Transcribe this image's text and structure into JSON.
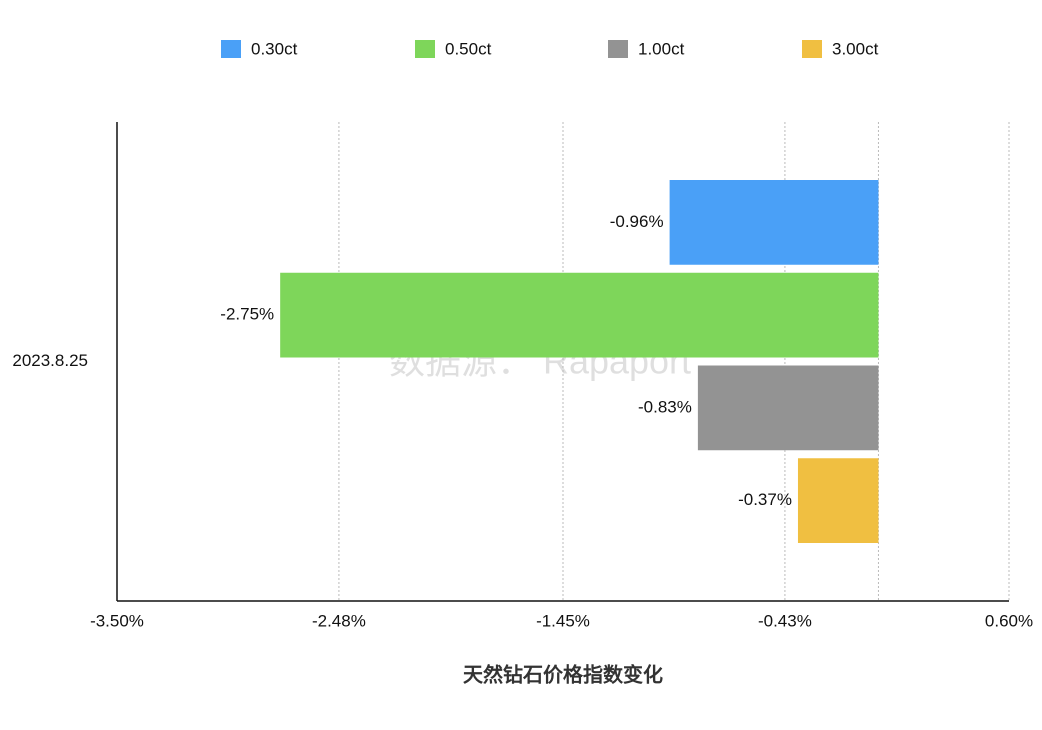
{
  "chart_data": {
    "type": "bar",
    "orientation": "horizontal",
    "categories": [
      "2023.8.25"
    ],
    "series": [
      {
        "name": "0.30ct",
        "color": "#4aa0f7",
        "values": [
          -0.96
        ],
        "value_labels": [
          "-0.96%"
        ]
      },
      {
        "name": "0.50ct",
        "color": "#7ed65a",
        "values": [
          -2.75
        ],
        "value_labels": [
          "-2.75%"
        ]
      },
      {
        "name": "1.00ct",
        "color": "#939393",
        "values": [
          -0.83
        ],
        "value_labels": [
          "-0.83%"
        ]
      },
      {
        "name": "3.00ct",
        "color": "#f0bf41",
        "values": [
          -0.37
        ],
        "value_labels": [
          "-0.37%"
        ]
      }
    ],
    "xlim": [
      -3.5,
      0.6
    ],
    "xticks": [
      {
        "value": -3.5,
        "label": "-3.50%"
      },
      {
        "value": -2.48,
        "label": "-2.48%"
      },
      {
        "value": -1.45,
        "label": "-1.45%"
      },
      {
        "value": -0.43,
        "label": "-0.43%"
      },
      {
        "value": 0.6,
        "label": "0.60%"
      }
    ],
    "xlabel": "天然钻石价格指数变化",
    "watermark": "数据源： Rapaport",
    "grid": true,
    "legend": "top"
  }
}
